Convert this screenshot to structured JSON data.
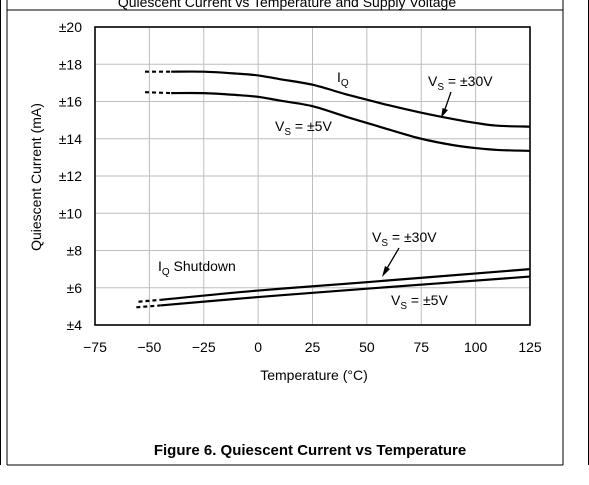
{
  "page_header": "Quiescent Current vs Temperature and Supply Voltage",
  "caption": "Figure 6. Quiescent Current vs Temperature",
  "chart_data": {
    "type": "line",
    "xlabel": "Temperature (°C)",
    "ylabel": "Quiescent Current (mA)",
    "xlim": [
      -75,
      125
    ],
    "ylim": [
      4,
      20
    ],
    "xticks": [
      -75,
      -50,
      -25,
      0,
      25,
      50,
      75,
      100,
      125
    ],
    "yticks": [
      4,
      6,
      8,
      10,
      12,
      14,
      16,
      18,
      20
    ],
    "xtick_labels": [
      "−75",
      "−50",
      "−25",
      "0",
      "25",
      "50",
      "75",
      "100",
      "125"
    ],
    "ytick_labels": [
      "±4",
      "±6",
      "±8",
      "±10",
      "±12",
      "±14",
      "±16",
      "±18",
      "±20"
    ],
    "grid": true,
    "series": [
      {
        "name": "IQ, VS = ±30V",
        "x": [
          -40,
          -25,
          -10,
          0,
          10,
          25,
          40,
          50,
          60,
          75,
          90,
          100,
          110,
          125
        ],
        "values": [
          17.6,
          17.6,
          17.5,
          17.4,
          17.2,
          16.9,
          16.4,
          16.1,
          15.8,
          15.4,
          15.05,
          14.85,
          14.7,
          14.65
        ],
        "dashed_extension": {
          "x": [
            -52,
            -40
          ],
          "values": [
            17.6,
            17.6
          ]
        }
      },
      {
        "name": "IQ, VS = ±5V",
        "x": [
          -40,
          -25,
          -10,
          0,
          10,
          25,
          40,
          50,
          60,
          75,
          90,
          100,
          110,
          125
        ],
        "values": [
          16.45,
          16.45,
          16.35,
          16.25,
          16.05,
          15.75,
          15.2,
          14.85,
          14.5,
          14.0,
          13.65,
          13.5,
          13.4,
          13.35
        ],
        "dashed_extension": {
          "x": [
            -52,
            -40
          ],
          "values": [
            16.5,
            16.45
          ]
        }
      },
      {
        "name": "IQ Shutdown, VS = ±30V",
        "x": [
          -45,
          0,
          50,
          125
        ],
        "values": [
          5.35,
          5.85,
          6.3,
          7.0
        ],
        "dashed_extension": {
          "x": [
            -55,
            -45
          ],
          "values": [
            5.25,
            5.35
          ]
        }
      },
      {
        "name": "IQ Shutdown, VS = ±5V",
        "x": [
          -45,
          0,
          50,
          125
        ],
        "values": [
          5.05,
          5.5,
          5.95,
          6.6
        ],
        "dashed_extension": {
          "x": [
            -56,
            -45
          ],
          "values": [
            4.95,
            5.05
          ]
        }
      }
    ],
    "annotations": {
      "iq": {
        "text": "I",
        "sub": "Q"
      },
      "iq_vs30": {
        "text": "V",
        "sub": "S",
        "rest": " = ±30V"
      },
      "iq_vs5": {
        "text": "V",
        "sub": "S",
        "rest": " = ±5V"
      },
      "sd": {
        "text": "I",
        "sub": "Q",
        "rest": " Shutdown"
      },
      "sd_vs30": {
        "text": "V",
        "sub": "S",
        "rest": " = ±30V"
      },
      "sd_vs5": {
        "text": "V",
        "sub": "S",
        "rest": " = ±5V"
      }
    }
  }
}
